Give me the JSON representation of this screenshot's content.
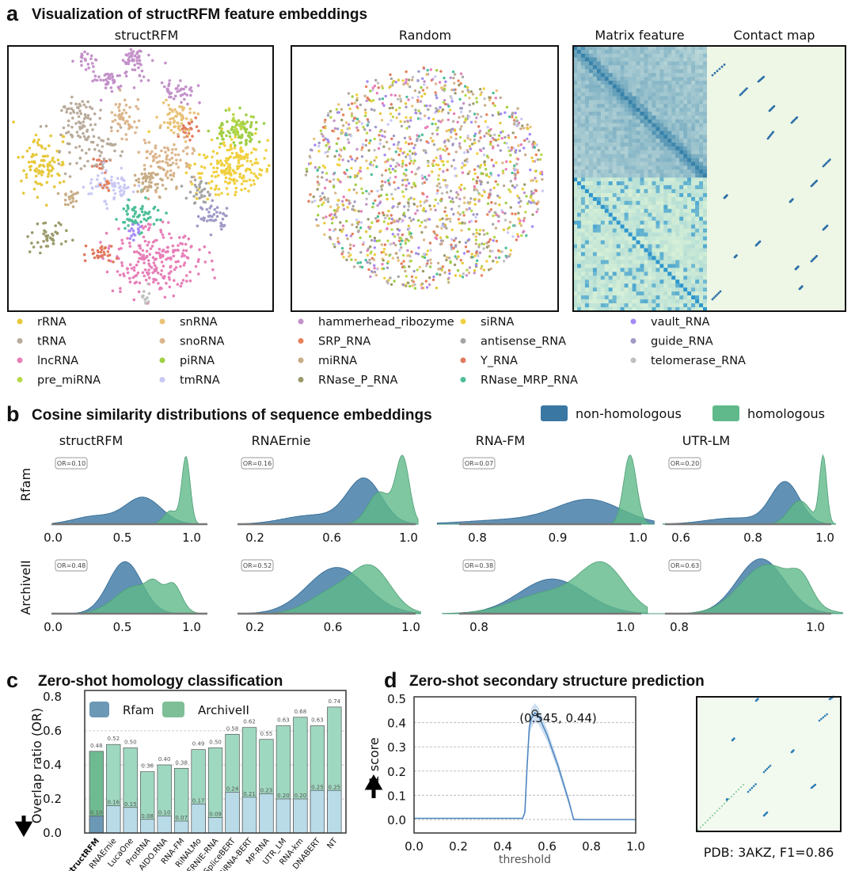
{
  "panel_a": {
    "label": "a",
    "title": "Visualization of structRFM feature embeddings",
    "subtitles": [
      "structRFM",
      "Random",
      "Matrix feature",
      "Contact map"
    ],
    "legend": [
      {
        "name": "rRNA",
        "color": "#e6c83a"
      },
      {
        "name": "tRNA",
        "color": "#b9ab9b"
      },
      {
        "name": "lncRNA",
        "color": "#e77fb8"
      },
      {
        "name": "pre_miRNA",
        "color": "#b8d84a"
      },
      {
        "name": "snRNA",
        "color": "#e9c277"
      },
      {
        "name": "snoRNA",
        "color": "#dcb58c"
      },
      {
        "name": "piRNA",
        "color": "#9fcf45"
      },
      {
        "name": "tmRNA",
        "color": "#c9c8f4"
      },
      {
        "name": "hammerhead_ribozyme",
        "color": "#c391c9"
      },
      {
        "name": "SRP_RNA",
        "color": "#e8825a"
      },
      {
        "name": "miRNA",
        "color": "#c8ad86"
      },
      {
        "name": "RNase_P_RNA",
        "color": "#9b9a6b"
      },
      {
        "name": "siRNA",
        "color": "#f0d040"
      },
      {
        "name": "antisense_RNA",
        "color": "#a5a5a5"
      },
      {
        "name": "Y_RNA",
        "color": "#e07a5f"
      },
      {
        "name": "RNase_MRP_RNA",
        "color": "#4dbf99"
      },
      {
        "name": "vault_RNA",
        "color": "#a58af5"
      },
      {
        "name": "guide_RNA",
        "color": "#9f9ac6"
      },
      {
        "name": "telomerase_RNA",
        "color": "#bfbfbf"
      }
    ]
  },
  "panel_b": {
    "label": "b",
    "title": "Cosine similarity distributions of sequence embeddings",
    "legend": [
      {
        "name": "non-homologous",
        "color": "#3a77a3"
      },
      {
        "name": "homologous",
        "color": "#5fb98a"
      }
    ],
    "columns": [
      "structRFM",
      "RNAErnie",
      "RNA-FM",
      "UTR-LM"
    ],
    "rows": [
      "Rfam",
      "ArchiveII"
    ],
    "ticks": [
      [
        [
          "0.0",
          "0.5",
          "1.0"
        ],
        [
          "0.2",
          "0.6",
          "1.0"
        ],
        [
          "0.8",
          "0.9",
          "1.0"
        ],
        [
          "0.6",
          "0.8",
          "1.0"
        ]
      ],
      [
        [
          "0.0",
          "0.5",
          "1.0"
        ],
        [
          "0.2",
          "0.6",
          "1.0"
        ],
        [
          "0.8",
          "1.0"
        ],
        [
          "0.8",
          "1.0"
        ]
      ]
    ],
    "overlap_ratios": [
      [
        "OR=0.10",
        "OR=0.16",
        "OR=0.07",
        "OR=0.20"
      ],
      [
        "OR=0.48",
        "OR=0.52",
        "OR=0.38",
        "OR=0.63"
      ]
    ]
  },
  "chart_data": [
    {
      "type": "bar",
      "panel": "c",
      "title": "Zero-shot homology classification",
      "ylabel": "Overlap ratio (OR)",
      "ylim": [
        0,
        0.8
      ],
      "yticks": [
        "0.0",
        "0.2",
        "0.4",
        "0.6",
        "0.8"
      ],
      "grid": true,
      "legend_position": "top-left",
      "categories": [
        "structRFM",
        "RNAErnie",
        "LucaOne",
        "ProtRNA",
        "AIDO.RNA",
        "RNA-FM",
        "RiNALMo",
        "ERNIE-RNA",
        "SpliceBERT",
        "BiRNA-BERT",
        "MP-RNA",
        "UTR_LM",
        "RNA-km",
        "DNABERT",
        "NT"
      ],
      "series": [
        {
          "name": "Rfam",
          "color": "#b9dbe8",
          "values": [
            0.1,
            0.16,
            0.15,
            0.08,
            0.1,
            0.07,
            0.17,
            0.09,
            0.24,
            0.21,
            0.23,
            0.2,
            0.2,
            0.25,
            0.25
          ]
        },
        {
          "name": "ArchiveII",
          "color": "#9fd8c0",
          "values": [
            0.48,
            0.52,
            0.5,
            0.36,
            0.4,
            0.38,
            0.49,
            0.5,
            0.58,
            0.62,
            0.55,
            0.63,
            0.68,
            0.63,
            0.74
          ]
        }
      ]
    },
    {
      "type": "line",
      "panel": "d",
      "title": "Zero-shot secondary structure prediction",
      "xlabel": "threshold",
      "ylabel": "F1 score",
      "xlim": [
        0,
        1.0
      ],
      "ylim": [
        -0.05,
        0.5
      ],
      "xticks": [
        "0.0",
        "0.2",
        "0.4",
        "0.6",
        "0.8",
        "1.0"
      ],
      "yticks": [
        "0.0",
        "0.1",
        "0.2",
        "0.3",
        "0.4",
        "0.5"
      ],
      "grid": true,
      "x": [
        0.0,
        0.49,
        0.5,
        0.51,
        0.52,
        0.53,
        0.545,
        0.56,
        0.6,
        0.65,
        0.7,
        0.72,
        0.8,
        1.0
      ],
      "y": [
        0.005,
        0.005,
        0.03,
        0.22,
        0.38,
        0.42,
        0.44,
        0.43,
        0.35,
        0.22,
        0.07,
        0.0,
        0.0,
        0.0
      ],
      "band": [
        0.0,
        0.0,
        0.01,
        0.02,
        0.035,
        0.04,
        0.04,
        0.035,
        0.025,
        0.02,
        0.015,
        0.005,
        0.0,
        0.0
      ],
      "highlight": {
        "x": 0.545,
        "y": 0.44,
        "label": "(0.545, 0.44)"
      },
      "caption": "PDB: 3AKZ, F1=0.86"
    }
  ],
  "panel_c": {
    "label": "c",
    "down_arrow": "lower is better"
  },
  "panel_d": {
    "label": "d"
  }
}
